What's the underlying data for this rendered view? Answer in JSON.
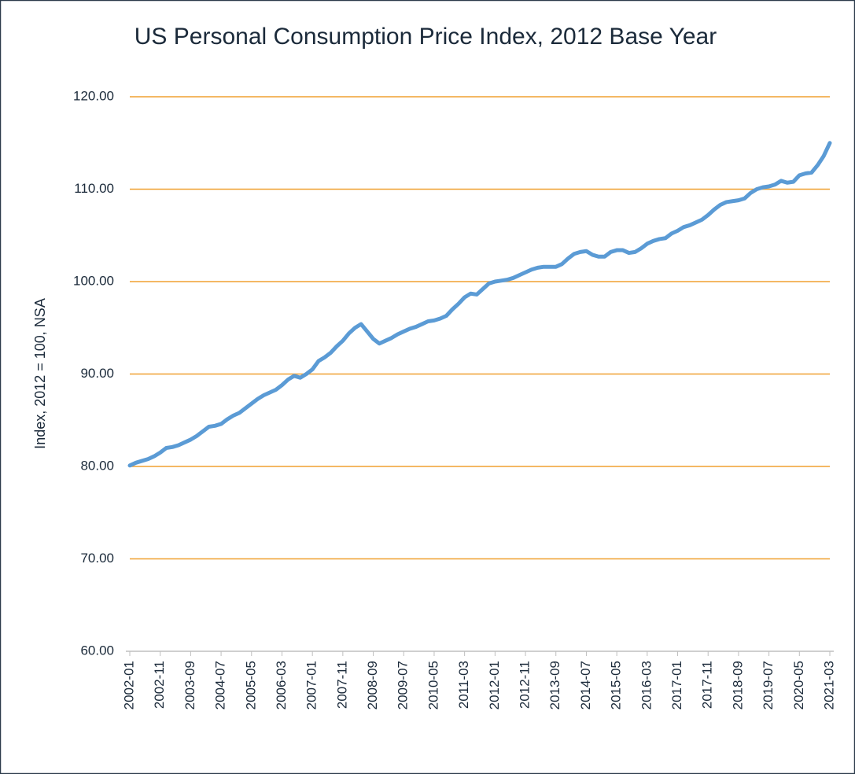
{
  "chart_data": {
    "type": "line",
    "title": "US Personal Consumption Price Index, 2012 Base Year",
    "y_label": "Index, 2012 = 100, NSA",
    "categories": [
      "2002-01",
      null,
      null,
      null,
      null,
      "2002-11",
      null,
      null,
      null,
      null,
      "2003-09",
      null,
      null,
      null,
      null,
      "2004-07",
      null,
      null,
      null,
      null,
      "2005-05",
      null,
      null,
      null,
      null,
      "2006-03",
      null,
      null,
      null,
      null,
      "2007-01",
      null,
      null,
      null,
      null,
      "2007-11",
      null,
      null,
      null,
      null,
      "2008-09",
      null,
      null,
      null,
      null,
      "2009-07",
      null,
      null,
      null,
      null,
      "2010-05",
      null,
      null,
      null,
      null,
      "2011-03",
      null,
      null,
      null,
      null,
      "2012-01",
      null,
      null,
      null,
      null,
      "2012-11",
      null,
      null,
      null,
      null,
      "2013-09",
      null,
      null,
      null,
      null,
      "2014-07",
      null,
      null,
      null,
      null,
      "2015-05",
      null,
      null,
      null,
      null,
      "2016-03",
      null,
      null,
      null,
      null,
      "2017-01",
      null,
      null,
      null,
      null,
      "2017-11",
      null,
      null,
      null,
      null,
      "2018-09",
      null,
      null,
      null,
      null,
      "2019-07",
      null,
      null,
      null,
      null,
      "2020-05",
      null,
      null,
      null,
      null,
      "2021-03"
    ],
    "series": [
      {
        "color": "#5b9bd5",
        "values": [
          80.1,
          80.4,
          80.6,
          80.8,
          81.1,
          81.5,
          82.0,
          82.1,
          82.3,
          82.6,
          82.9,
          83.3,
          83.8,
          84.3,
          84.4,
          84.6,
          85.1,
          85.5,
          85.8,
          86.3,
          86.8,
          87.3,
          87.7,
          88.0,
          88.3,
          88.8,
          89.4,
          89.8,
          89.6,
          90.0,
          90.5,
          91.4,
          91.8,
          92.3,
          93.0,
          93.6,
          94.4,
          95.0,
          95.4,
          94.6,
          93.8,
          93.3,
          93.6,
          93.9,
          94.3,
          94.6,
          94.9,
          95.1,
          95.4,
          95.7,
          95.8,
          96.0,
          96.3,
          97.0,
          97.6,
          98.3,
          98.7,
          98.6,
          99.2,
          99.8,
          100.0,
          100.1,
          100.2,
          100.4,
          100.7,
          101.0,
          101.3,
          101.5,
          101.6,
          101.6,
          101.6,
          101.9,
          102.5,
          103.0,
          103.2,
          103.3,
          102.9,
          102.7,
          102.7,
          103.2,
          103.4,
          103.4,
          103.1,
          103.2,
          103.6,
          104.1,
          104.4,
          104.6,
          104.7,
          105.2,
          105.5,
          105.9,
          106.1,
          106.4,
          106.7,
          107.2,
          107.8,
          108.3,
          108.6,
          108.7,
          108.8,
          109.0,
          109.6,
          110.0,
          110.2,
          110.3,
          110.5,
          110.9,
          110.7,
          110.8,
          111.5,
          111.7,
          111.8,
          112.6,
          113.6,
          115.0
        ]
      }
    ],
    "ylim": [
      60,
      120
    ],
    "yticks": [
      {
        "value": 60,
        "label": "60.00"
      },
      {
        "value": 70,
        "label": "70.00"
      },
      {
        "value": 80,
        "label": "80.00"
      },
      {
        "value": 90,
        "label": "90.00"
      },
      {
        "value": 100,
        "label": "100.00"
      },
      {
        "value": 110,
        "label": "110.00"
      },
      {
        "value": 120,
        "label": "120.00"
      }
    ],
    "grid": true,
    "grid_color": "#f0a030"
  }
}
